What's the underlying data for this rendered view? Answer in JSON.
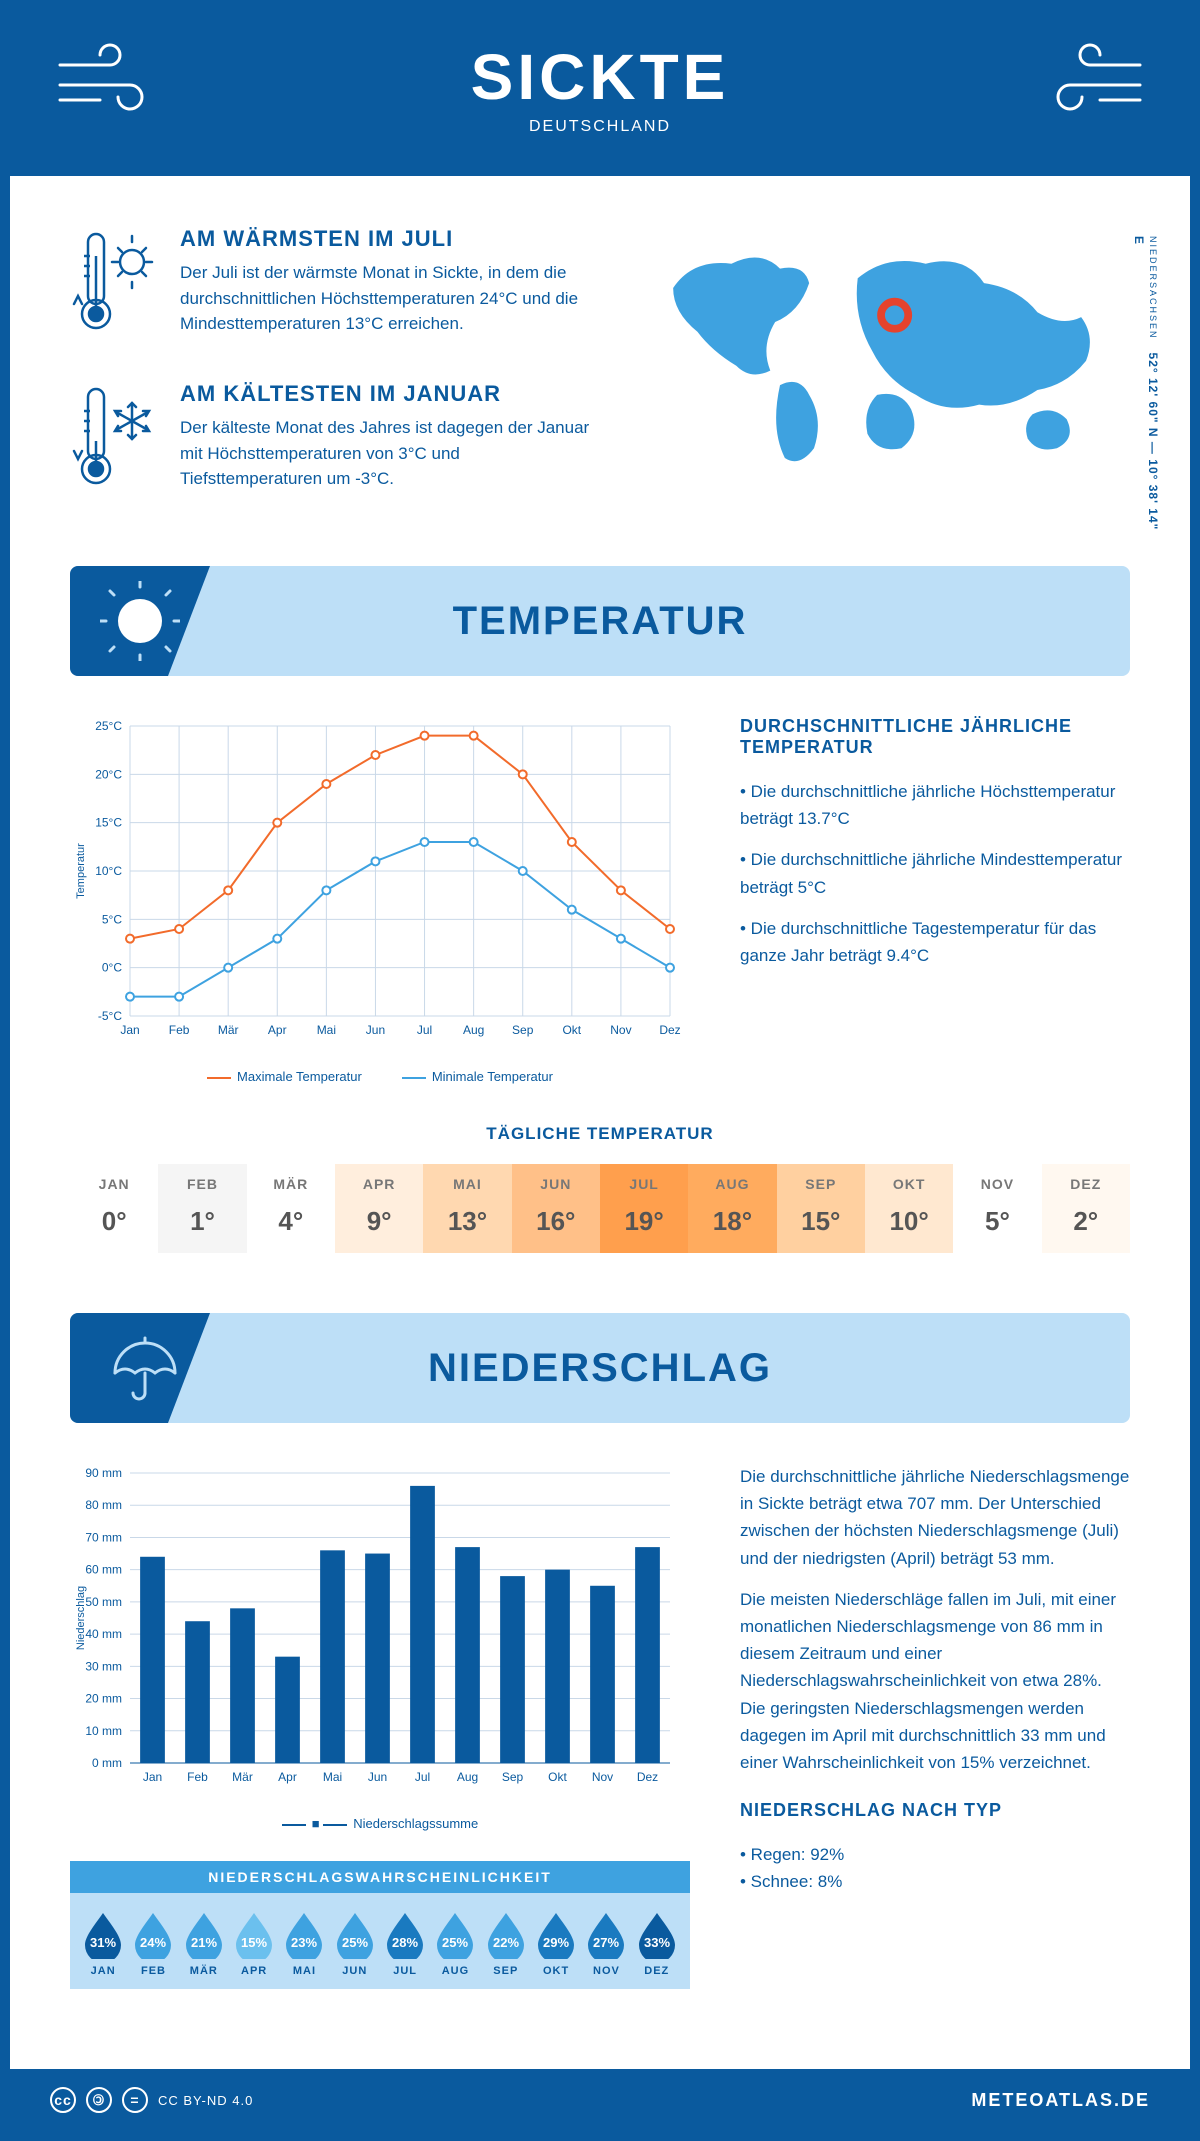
{
  "header": {
    "title": "SICKTE",
    "country": "DEUTSCHLAND"
  },
  "coords": {
    "lat": "52° 12' 60\" N",
    "lon": "10° 38' 14\" E",
    "region": "NIEDERSACHSEN"
  },
  "facts": {
    "warm": {
      "title": "AM WÄRMSTEN IM JULI",
      "text": "Der Juli ist der wärmste Monat in Sickte, in dem die durchschnittlichen Höchsttemperaturen 24°C und die Mindesttemperaturen 13°C erreichen."
    },
    "cold": {
      "title": "AM KÄLTESTEN IM JANUAR",
      "text": "Der kälteste Monat des Jahres ist dagegen der Januar mit Höchsttemperaturen von 3°C und Tiefsttemperaturen um -3°C."
    }
  },
  "sections": {
    "temperature": "TEMPERATUR",
    "precipitation": "NIEDERSCHLAG"
  },
  "temp_chart": {
    "months": [
      "Jan",
      "Feb",
      "Mär",
      "Apr",
      "Mai",
      "Jun",
      "Jul",
      "Aug",
      "Sep",
      "Okt",
      "Nov",
      "Dez"
    ],
    "max": [
      3,
      4,
      8,
      15,
      19,
      22,
      24,
      24,
      20,
      13,
      8,
      4
    ],
    "min": [
      -3,
      -3,
      0,
      3,
      8,
      11,
      13,
      13,
      10,
      6,
      3,
      0
    ],
    "ylim": [
      -5,
      25
    ],
    "ystep": 5,
    "ylabel": "Temperatur",
    "max_color": "#f26b2b",
    "min_color": "#3ea2e0",
    "legend_max": "Maximale Temperatur",
    "legend_min": "Minimale Temperatur",
    "grid_color": "#c9d8e8",
    "line_width": 2,
    "marker_size": 4
  },
  "temp_text": {
    "heading": "DURCHSCHNITTLICHE JÄHRLICHE TEMPERATUR",
    "b1": "• Die durchschnittliche jährliche Höchsttemperatur beträgt 13.7°C",
    "b2": "• Die durchschnittliche jährliche Mindesttemperatur beträgt 5°C",
    "b3": "• Die durchschnittliche Tagestemperatur für das ganze Jahr beträgt 9.4°C"
  },
  "daily": {
    "title": "TÄGLICHE TEMPERATUR",
    "months": [
      "JAN",
      "FEB",
      "MÄR",
      "APR",
      "MAI",
      "JUN",
      "JUL",
      "AUG",
      "SEP",
      "OKT",
      "NOV",
      "DEZ"
    ],
    "values": [
      "0°",
      "1°",
      "4°",
      "9°",
      "13°",
      "16°",
      "19°",
      "18°",
      "15°",
      "10°",
      "5°",
      "2°"
    ],
    "colors": [
      "#ffffff",
      "#f5f5f5",
      "#ffffff",
      "#ffeedd",
      "#ffd8b0",
      "#ffc088",
      "#ff9f4d",
      "#ffab5e",
      "#ffd0a0",
      "#ffe8d0",
      "#ffffff",
      "#fff8f0"
    ]
  },
  "precip_chart": {
    "months": [
      "Jan",
      "Feb",
      "Mär",
      "Apr",
      "Mai",
      "Jun",
      "Jul",
      "Aug",
      "Sep",
      "Okt",
      "Nov",
      "Dez"
    ],
    "values": [
      64,
      44,
      48,
      33,
      66,
      65,
      86,
      67,
      58,
      60,
      55,
      67
    ],
    "ylim": [
      0,
      90
    ],
    "ystep": 10,
    "ylabel": "Niederschlag",
    "bar_color": "#0a5a9e",
    "grid_color": "#c9d8e8",
    "legend": "Niederschlagssumme"
  },
  "precip_text": {
    "p1": "Die durchschnittliche jährliche Niederschlagsmenge in Sickte beträgt etwa 707 mm. Der Unterschied zwischen der höchsten Niederschlagsmenge (Juli) und der niedrigsten (April) beträgt 53 mm.",
    "p2": "Die meisten Niederschläge fallen im Juli, mit einer monatlichen Niederschlagsmenge von 86 mm in diesem Zeitraum und einer Niederschlagswahrscheinlichkeit von etwa 28%. Die geringsten Niederschlagsmengen werden dagegen im April mit durchschnittlich 33 mm und einer Wahrscheinlichkeit von 15% verzeichnet.",
    "type_h": "NIEDERSCHLAG NACH TYP",
    "type_1": "• Regen: 92%",
    "type_2": "• Schnee: 8%"
  },
  "prob": {
    "title": "NIEDERSCHLAGSWAHRSCHEINLICHKEIT",
    "months": [
      "JAN",
      "FEB",
      "MÄR",
      "APR",
      "MAI",
      "JUN",
      "JUL",
      "AUG",
      "SEP",
      "OKT",
      "NOV",
      "DEZ"
    ],
    "values": [
      "31%",
      "24%",
      "21%",
      "15%",
      "23%",
      "25%",
      "28%",
      "25%",
      "22%",
      "29%",
      "27%",
      "33%"
    ],
    "colors": [
      "#0a5a9e",
      "#3ea2e0",
      "#3ea2e0",
      "#6bc0ee",
      "#3ea2e0",
      "#3ea2e0",
      "#1a7ac0",
      "#3ea2e0",
      "#3ea2e0",
      "#1a7ac0",
      "#1a7ac0",
      "#0a5a9e"
    ]
  },
  "footer": {
    "license": "CC BY-ND 4.0",
    "site": "METEOATLAS.DE"
  }
}
